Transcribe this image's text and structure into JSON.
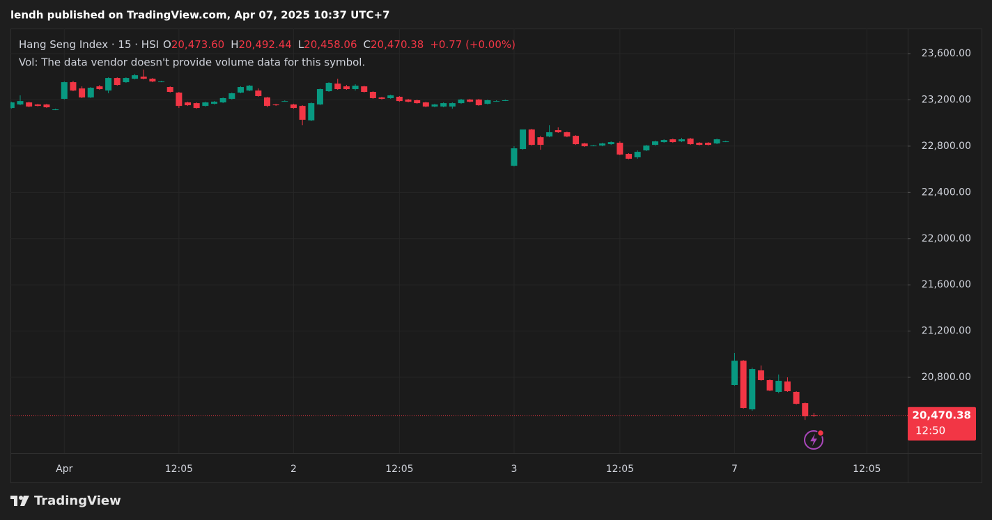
{
  "header": {
    "title": "lendh published on TradingView.com, Apr 07, 2025 10:37 UTC+7"
  },
  "chart_data": {
    "type": "candlestick",
    "symbol": "Hang Seng Index · 15 · HSI",
    "ohlc_legend": [
      {
        "key": "O",
        "value": "20,473.60"
      },
      {
        "key": "H",
        "value": "20,492.44"
      },
      {
        "key": "L",
        "value": "20,458.06"
      },
      {
        "key": "C",
        "value": "20,470.38"
      }
    ],
    "change": "+0.77 (+0.00%)",
    "volume_note": "Vol: The data vendor doesn't provide volume data for this symbol.",
    "categories": [
      null,
      null,
      null,
      null,
      null,
      null,
      "Apr",
      null,
      null,
      null,
      null,
      null,
      null,
      null,
      null,
      null,
      null,
      null,
      null,
      "12:05",
      null,
      null,
      null,
      null,
      null,
      null,
      null,
      null,
      null,
      null,
      null,
      null,
      "2",
      null,
      null,
      null,
      null,
      null,
      null,
      null,
      null,
      null,
      null,
      null,
      "12:05",
      null,
      null,
      null,
      null,
      null,
      null,
      null,
      null,
      null,
      null,
      null,
      null,
      "3",
      null,
      null,
      null,
      null,
      null,
      null,
      null,
      null,
      null,
      null,
      null,
      "12:05",
      null,
      null,
      null,
      null,
      null,
      null,
      null,
      null,
      null,
      null,
      null,
      null,
      "7",
      null,
      null,
      null,
      null,
      null,
      null,
      null,
      null,
      null,
      null,
      null,
      null,
      null,
      null,
      "12:05",
      null,
      null,
      null,
      null
    ],
    "open": [
      23130,
      23160,
      23178,
      23160,
      23160,
      23118,
      23209,
      23353,
      23299,
      23221,
      23317,
      23281,
      23389,
      23353,
      23383,
      23401,
      23383,
      23359,
      23311,
      23263,
      23178,
      23172,
      23148,
      23166,
      23178,
      23209,
      23263,
      23281,
      23281,
      23221,
      23160,
      23190,
      23160,
      23148,
      23022,
      23160,
      23275,
      23341,
      23317,
      23293,
      23317,
      23269,
      23221,
      23215,
      23227,
      23203,
      23197,
      23178,
      23142,
      23142,
      23142,
      23172,
      23203,
      23203,
      23166,
      23190,
      23197,
      22630,
      22775,
      22944,
      22877,
      22883,
      22938,
      22920,
      22889,
      22823,
      22805,
      22805,
      22817,
      22829,
      22733,
      22703,
      22763,
      22811,
      22835,
      22859,
      22841,
      22865,
      22829,
      22829,
      22823,
      22841,
      20734,
      20944,
      20523,
      20860,
      20776,
      20674,
      20764,
      20674,
      20577,
      20473.6,
      null,
      null,
      null,
      null,
      null,
      null,
      null,
      null,
      null,
      null
    ],
    "high": [
      23184,
      23239,
      23184,
      23166,
      23166,
      23124,
      23359,
      23365,
      23317,
      23311,
      23329,
      23395,
      23395,
      23395,
      23425,
      23462,
      23389,
      23365,
      23317,
      23269,
      23184,
      23178,
      23184,
      23190,
      23221,
      23263,
      23317,
      23329,
      23299,
      23227,
      23166,
      23196,
      23166,
      23154,
      23178,
      23299,
      23353,
      23383,
      23329,
      23335,
      23323,
      23275,
      23227,
      23245,
      23233,
      23209,
      23203,
      23184,
      23166,
      23178,
      23178,
      23209,
      23209,
      23209,
      23203,
      23197,
      23203,
      22799,
      22944,
      22950,
      22889,
      22980,
      22962,
      22926,
      22895,
      22829,
      22811,
      22829,
      22841,
      22841,
      22739,
      22763,
      22811,
      22847,
      22859,
      22865,
      22871,
      22871,
      22835,
      22835,
      22865,
      22847,
      21011,
      20950,
      20884,
      20902,
      20782,
      20824,
      20800,
      20680,
      20583,
      20492.44,
      null,
      null,
      null,
      null,
      null,
      null,
      null,
      null,
      null,
      null
    ],
    "low": [
      23124,
      23154,
      23136,
      23142,
      23130,
      23112,
      23203,
      23275,
      23215,
      23215,
      23287,
      23257,
      23323,
      23347,
      23377,
      23377,
      23353,
      23353,
      23263,
      23130,
      23148,
      23124,
      23142,
      23160,
      23172,
      23203,
      23257,
      23275,
      23227,
      23136,
      23148,
      23184,
      23124,
      22980,
      23016,
      23154,
      23269,
      23287,
      23287,
      23281,
      23263,
      23209,
      23203,
      23209,
      23184,
      23178,
      23166,
      23136,
      23136,
      23136,
      23124,
      23166,
      23178,
      23148,
      23160,
      23184,
      23190,
      22624,
      22769,
      22805,
      22769,
      22877,
      22914,
      22877,
      22811,
      22793,
      22799,
      22799,
      22811,
      22721,
      22685,
      22691,
      22757,
      22805,
      22829,
      22829,
      22835,
      22811,
      22805,
      22805,
      22817,
      22835,
      20728,
      20529,
      20511,
      20770,
      20680,
      20662,
      20674,
      20565,
      20432,
      20458.06,
      null,
      null,
      null,
      null,
      null,
      null,
      null,
      null,
      null,
      null
    ],
    "close": [
      23178,
      23190,
      23142,
      23148,
      23136,
      23118,
      23353,
      23281,
      23221,
      23305,
      23293,
      23389,
      23329,
      23389,
      23413,
      23383,
      23359,
      23359,
      23269,
      23148,
      23154,
      23130,
      23178,
      23184,
      23215,
      23257,
      23311,
      23323,
      23233,
      23148,
      23154,
      23190,
      23130,
      23028,
      23172,
      23293,
      23347,
      23293,
      23293,
      23323,
      23269,
      23215,
      23209,
      23239,
      23190,
      23184,
      23172,
      23142,
      23160,
      23172,
      23172,
      23203,
      23184,
      23154,
      23197,
      23190,
      23197,
      22781,
      22944,
      22811,
      22811,
      22920,
      22920,
      22883,
      22817,
      22799,
      22805,
      22823,
      22835,
      22727,
      22691,
      22751,
      22805,
      22841,
      22853,
      22835,
      22859,
      22817,
      22811,
      22811,
      22859,
      22841,
      20944,
      20535,
      20872,
      20776,
      20686,
      20770,
      20680,
      20571,
      20463,
      20470.38,
      null,
      null,
      null,
      null,
      null,
      null,
      null,
      null,
      null,
      null
    ],
    "up_color": "#089981",
    "down_color": "#f23645",
    "ylim": [
      20144,
      23817
    ],
    "yticks": [
      {
        "value": 20800,
        "label": "20,800.00"
      },
      {
        "value": 21200,
        "label": "21,200.00"
      },
      {
        "value": 21600,
        "label": "21,600.00"
      },
      {
        "value": 22000,
        "label": "22,000.00"
      },
      {
        "value": 22400,
        "label": "22,400.00"
      },
      {
        "value": 22800,
        "label": "22,800.00"
      },
      {
        "value": 23200,
        "label": "23,200.00"
      },
      {
        "value": 23600,
        "label": "23,600.00"
      }
    ],
    "grid": true,
    "last_price": {
      "label": "20,470.38",
      "time": "12:50"
    }
  },
  "footer": {
    "brand": "TradingView"
  }
}
